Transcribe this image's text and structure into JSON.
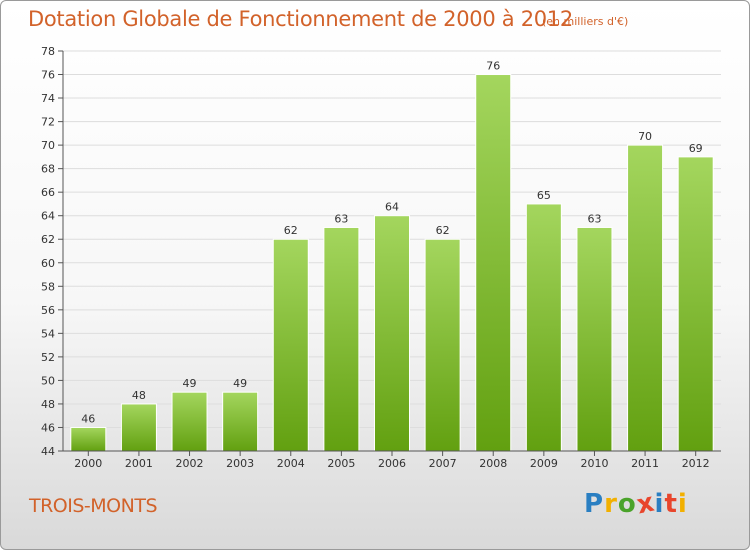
{
  "header": {
    "title": "Dotation Globale de Fonctionnement de 2000 à 2012",
    "unit": "(en milliers d'€)"
  },
  "footer": {
    "place": "TROIS-MONTS",
    "logo": [
      "P",
      "r",
      "o",
      "x",
      "i",
      "t",
      "i"
    ],
    "logo_colors": [
      "#2a7fc2",
      "#f2b000",
      "#4aa32a",
      "#e8452c",
      "#2a7fc2",
      "#e8452c",
      "#f2b000"
    ]
  },
  "colors": {
    "bar_top": "#a4d65e",
    "bar_bottom": "#62a010",
    "grid": "#dddddd",
    "axis": "#555555",
    "title": "#d2622a"
  },
  "chart_data": {
    "type": "bar",
    "title": "Dotation Globale de Fonctionnement de 2000 à 2012",
    "subtitle": "(en milliers d'€)",
    "xlabel": "",
    "ylabel": "",
    "categories": [
      "2000",
      "2001",
      "2002",
      "2003",
      "2004",
      "2005",
      "2006",
      "2007",
      "2008",
      "2009",
      "2010",
      "2011",
      "2012"
    ],
    "values": [
      46,
      48,
      49,
      49,
      62,
      63,
      64,
      62,
      76,
      65,
      63,
      70,
      69
    ],
    "ylim": [
      44,
      78
    ],
    "yticks": [
      44,
      46,
      48,
      50,
      52,
      54,
      56,
      58,
      60,
      62,
      64,
      66,
      68,
      70,
      72,
      74,
      76,
      78
    ],
    "grid": true,
    "legend": "none"
  }
}
